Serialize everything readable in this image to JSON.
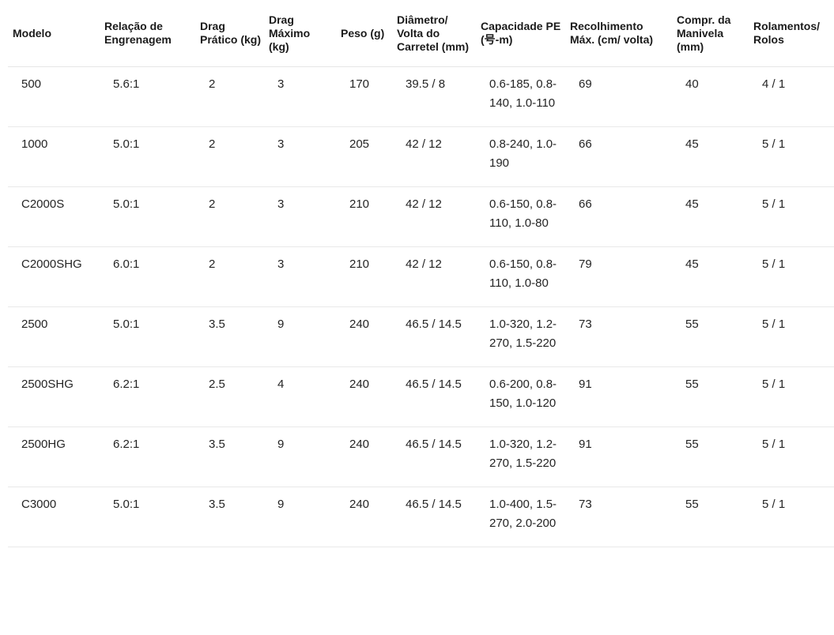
{
  "colors": {
    "background": "#ffffff",
    "text": "#1f1f1f",
    "header_text": "#1b1b1b",
    "divider": "#e6e6e6"
  },
  "table": {
    "columns": [
      {
        "key": "modelo",
        "label": "Modelo"
      },
      {
        "key": "gear",
        "label": "Relação de Engrenagem"
      },
      {
        "key": "drag_pratico",
        "label": "Drag Prático (kg)"
      },
      {
        "key": "drag_maximo",
        "label": "Drag Máximo (kg)"
      },
      {
        "key": "peso",
        "label": "Peso (g)"
      },
      {
        "key": "diametro",
        "label": "Diâmetro/ Volta do Carretel (mm)"
      },
      {
        "key": "capacidade",
        "label": "Capacidade PE (号-m)"
      },
      {
        "key": "recolhimento",
        "label": "Recolhimento Máx. (cm/ volta)"
      },
      {
        "key": "manivela",
        "label": "Compr. da Manivela (mm)"
      },
      {
        "key": "rolamentos",
        "label": "Rolamentos/ Rolos"
      }
    ],
    "rows": [
      {
        "modelo": "500",
        "gear": "5.6:1",
        "drag_pratico": "2",
        "drag_maximo": "3",
        "peso": "170",
        "diametro": "39.5 / 8",
        "capacidade": "0.6-185, 0.8-140, 1.0-110",
        "recolhimento": "69",
        "manivela": "40",
        "rolamentos": "4 / 1"
      },
      {
        "modelo": "1000",
        "gear": "5.0:1",
        "drag_pratico": "2",
        "drag_maximo": "3",
        "peso": "205",
        "diametro": "42 / 12",
        "capacidade": "0.8-240, 1.0-190",
        "recolhimento": "66",
        "manivela": "45",
        "rolamentos": "5 / 1"
      },
      {
        "modelo": "C2000S",
        "gear": "5.0:1",
        "drag_pratico": "2",
        "drag_maximo": "3",
        "peso": "210",
        "diametro": "42 / 12",
        "capacidade": "0.6-150, 0.8-110, 1.0-80",
        "recolhimento": "66",
        "manivela": "45",
        "rolamentos": "5 / 1"
      },
      {
        "modelo": "C2000SHG",
        "gear": "6.0:1",
        "drag_pratico": "2",
        "drag_maximo": "3",
        "peso": "210",
        "diametro": "42 / 12",
        "capacidade": "0.6-150, 0.8-110, 1.0-80",
        "recolhimento": "79",
        "manivela": "45",
        "rolamentos": "5 / 1"
      },
      {
        "modelo": "2500",
        "gear": "5.0:1",
        "drag_pratico": "3.5",
        "drag_maximo": "9",
        "peso": "240",
        "diametro": "46.5 / 14.5",
        "capacidade": "1.0-320, 1.2-270, 1.5-220",
        "recolhimento": "73",
        "manivela": "55",
        "rolamentos": "5 / 1"
      },
      {
        "modelo": "2500SHG",
        "gear": "6.2:1",
        "drag_pratico": "2.5",
        "drag_maximo": "4",
        "peso": "240",
        "diametro": "46.5 / 14.5",
        "capacidade": "0.6-200, 0.8-150, 1.0-120",
        "recolhimento": "91",
        "manivela": "55",
        "rolamentos": "5 / 1"
      },
      {
        "modelo": "2500HG",
        "gear": "6.2:1",
        "drag_pratico": "3.5",
        "drag_maximo": "9",
        "peso": "240",
        "diametro": "46.5 / 14.5",
        "capacidade": "1.0-320, 1.2-270, 1.5-220",
        "recolhimento": "91",
        "manivela": "55",
        "rolamentos": "5 / 1"
      },
      {
        "modelo": "C3000",
        "gear": "5.0:1",
        "drag_pratico": "3.5",
        "drag_maximo": "9",
        "peso": "240",
        "diametro": "46.5 / 14.5",
        "capacidade": "1.0-400, 1.5-270, 2.0-200",
        "recolhimento": "73",
        "manivela": "55",
        "rolamentos": "5 / 1"
      }
    ]
  }
}
